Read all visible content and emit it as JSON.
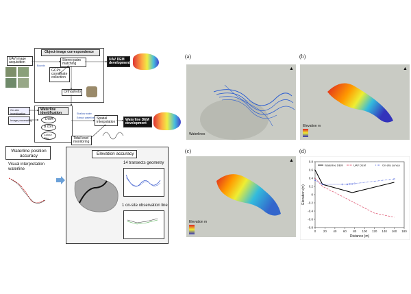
{
  "flowchart": {
    "object_image_header": "Object-image correspondence",
    "uav_acquisition": "UAV image acquisition",
    "stereo_matching": "Stereo pairs matching",
    "gcps": "GCPs coordinate collection",
    "orthophoto": "Orthophoto",
    "uav_dem": "UAV DEM development",
    "onsite_investigation": "On-site investigation",
    "image_processing": "Image processing",
    "waterline_identification": "Waterline identification",
    "ndwi": "DWA",
    "ilum": "B corr.",
    "color_filter": "Colour filter",
    "spatial_interpolation": "Spatial interpolation",
    "waterline_dem": "Waterline DEM development",
    "tidal_monitoring": "Tidal level monitoring",
    "small_note_1": "Bounds",
    "small_note_2": "Shallow water",
    "small_note_3": "Extract waterline"
  },
  "accuracy": {
    "waterline_title": "Waterline position accuracy",
    "visual_bullet": "Visual interpretation waterline",
    "elevation_title": "Elevation accuracy",
    "transects_bullet": "14 transects geometry",
    "onsite_bullet": "1 on-site observation line"
  },
  "panels": {
    "a": "(a)",
    "b": "(b)",
    "c": "(c)",
    "d": "(d)",
    "waterlines_legend": "Waterlines",
    "elevation_legend_b": "Elevation m",
    "elevation_legend_c": "Elevation m"
  },
  "chart_data": {
    "type": "line",
    "xlabel": "Distance (m)",
    "ylabel": "Elevation (m)",
    "xlim": [
      0,
      180
    ],
    "ylim": [
      -0.8,
      0.8
    ],
    "x_ticks": [
      "0",
      "20",
      "40",
      "60",
      "80",
      "100",
      "120",
      "140",
      "160",
      "180"
    ],
    "y_ticks": [
      "0.8",
      "0.6",
      "0.4",
      "0.2",
      "0",
      "-0.2",
      "-0.4",
      "-0.6",
      "-0.8"
    ],
    "series": [
      {
        "name": "Waterline DEM",
        "color": "#000000",
        "style": "solid",
        "x": [
          0,
          15,
          75,
          160
        ],
        "y": [
          0.6,
          0.25,
          0.05,
          0.3
        ]
      },
      {
        "name": "UAV DEM",
        "color": "#e0607a",
        "style": "dashed",
        "x": [
          0,
          15,
          40,
          80,
          120,
          160
        ],
        "y": [
          0.4,
          0.2,
          0.05,
          -0.2,
          -0.45,
          -0.55
        ]
      },
      {
        "name": "On-site survey",
        "color": "#5a6ee0",
        "style": "dotted",
        "x": [
          0,
          15,
          55,
          65,
          70,
          75,
          80,
          160
        ],
        "y": [
          0.35,
          0.25,
          0.25,
          0.25,
          0.26,
          0.26,
          0.27,
          0.38
        ]
      }
    ],
    "legend_position": "top"
  }
}
